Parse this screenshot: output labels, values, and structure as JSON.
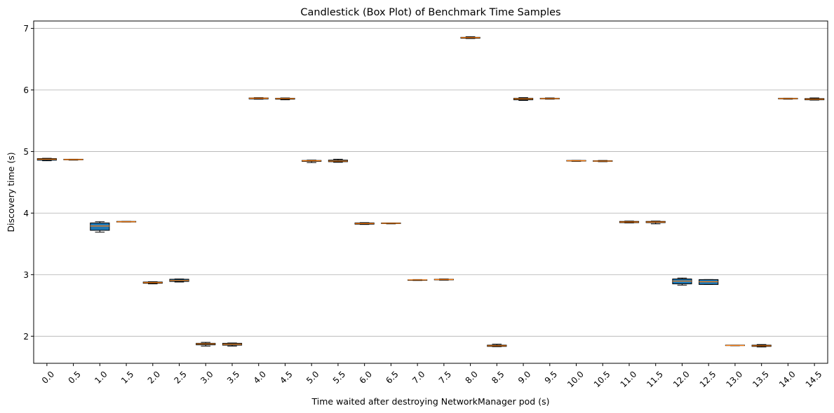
{
  "chart_data": {
    "type": "box",
    "title": "Candlestick (Box Plot) of Benchmark Time Samples",
    "xlabel": "Time waited after destroying NetworkManager pod (s)",
    "ylabel": "Discovery time (s)",
    "ylim": [
      1.56,
      7.12
    ],
    "yticks": [
      2,
      3,
      4,
      5,
      6,
      7
    ],
    "grid": "y",
    "colors": {
      "box_fill": "#1f77b4",
      "median": "#ff7f0e",
      "grid": "#b0b0b0",
      "edge": "#000000"
    },
    "categories": [
      "0.0",
      "0.5",
      "1.0",
      "1.5",
      "2.0",
      "2.5",
      "3.0",
      "3.5",
      "4.0",
      "4.5",
      "5.0",
      "5.5",
      "6.0",
      "6.5",
      "7.0",
      "7.5",
      "8.0",
      "8.5",
      "9.0",
      "9.5",
      "10.0",
      "10.5",
      "11.0",
      "11.5",
      "12.0",
      "12.5",
      "13.0",
      "13.5",
      "14.0",
      "14.5"
    ],
    "boxes": [
      {
        "min": 4.85,
        "q1": 4.86,
        "median": 4.875,
        "q3": 4.885,
        "max": 4.89
      },
      {
        "min": 4.86,
        "q1": 4.865,
        "median": 4.87,
        "q3": 4.875,
        "max": 4.875
      },
      {
        "min": 3.69,
        "q1": 3.72,
        "median": 3.79,
        "q3": 3.84,
        "max": 3.86
      },
      {
        "min": 3.855,
        "q1": 3.855,
        "median": 3.86,
        "q3": 3.865,
        "max": 3.865
      },
      {
        "min": 2.85,
        "q1": 2.86,
        "median": 2.87,
        "q3": 2.88,
        "max": 2.885
      },
      {
        "min": 2.88,
        "q1": 2.89,
        "median": 2.905,
        "q3": 2.925,
        "max": 2.93
      },
      {
        "min": 1.84,
        "q1": 1.86,
        "median": 1.875,
        "q3": 1.885,
        "max": 1.9
      },
      {
        "min": 1.84,
        "q1": 1.855,
        "median": 1.87,
        "q3": 1.885,
        "max": 1.89
      },
      {
        "min": 5.85,
        "q1": 5.855,
        "median": 5.865,
        "q3": 5.87,
        "max": 5.875
      },
      {
        "min": 5.84,
        "q1": 5.85,
        "median": 5.86,
        "q3": 5.865,
        "max": 5.87
      },
      {
        "min": 4.82,
        "q1": 4.84,
        "median": 4.85,
        "q3": 4.855,
        "max": 4.86
      },
      {
        "min": 4.825,
        "q1": 4.835,
        "median": 4.845,
        "q3": 4.86,
        "max": 4.875
      },
      {
        "min": 3.815,
        "q1": 3.82,
        "median": 3.83,
        "q3": 3.84,
        "max": 3.845
      },
      {
        "min": 3.825,
        "q1": 3.83,
        "median": 3.835,
        "q3": 3.84,
        "max": 3.84
      },
      {
        "min": 2.905,
        "q1": 2.91,
        "median": 2.915,
        "q3": 2.915,
        "max": 2.92
      },
      {
        "min": 2.91,
        "q1": 2.915,
        "median": 2.92,
        "q3": 2.925,
        "max": 2.93
      },
      {
        "min": 6.835,
        "q1": 6.84,
        "median": 6.85,
        "q3": 6.855,
        "max": 6.865
      },
      {
        "min": 1.83,
        "q1": 1.835,
        "median": 1.845,
        "q3": 1.855,
        "max": 1.87
      },
      {
        "min": 5.83,
        "q1": 5.84,
        "median": 5.855,
        "q3": 5.865,
        "max": 5.875
      },
      {
        "min": 5.85,
        "q1": 5.855,
        "median": 5.86,
        "q3": 5.865,
        "max": 5.87
      },
      {
        "min": 4.84,
        "q1": 4.845,
        "median": 4.85,
        "q3": 4.855,
        "max": 4.855
      },
      {
        "min": 4.835,
        "q1": 4.84,
        "median": 4.845,
        "q3": 4.85,
        "max": 4.855
      },
      {
        "min": 3.84,
        "q1": 3.845,
        "median": 3.855,
        "q3": 3.865,
        "max": 3.87
      },
      {
        "min": 3.825,
        "q1": 3.845,
        "median": 3.855,
        "q3": 3.865,
        "max": 3.87
      },
      {
        "min": 2.83,
        "q1": 2.85,
        "median": 2.895,
        "q3": 2.93,
        "max": 2.945
      },
      {
        "min": 2.84,
        "q1": 2.84,
        "median": 2.885,
        "q3": 2.92,
        "max": 2.92
      },
      {
        "min": 1.845,
        "q1": 1.85,
        "median": 1.85,
        "q3": 1.855,
        "max": 1.855
      },
      {
        "min": 1.825,
        "q1": 1.835,
        "median": 1.845,
        "q3": 1.855,
        "max": 1.865
      },
      {
        "min": 5.85,
        "q1": 5.855,
        "median": 5.86,
        "q3": 5.865,
        "max": 5.865
      },
      {
        "min": 5.835,
        "q1": 5.84,
        "median": 5.85,
        "q3": 5.86,
        "max": 5.87
      }
    ]
  }
}
